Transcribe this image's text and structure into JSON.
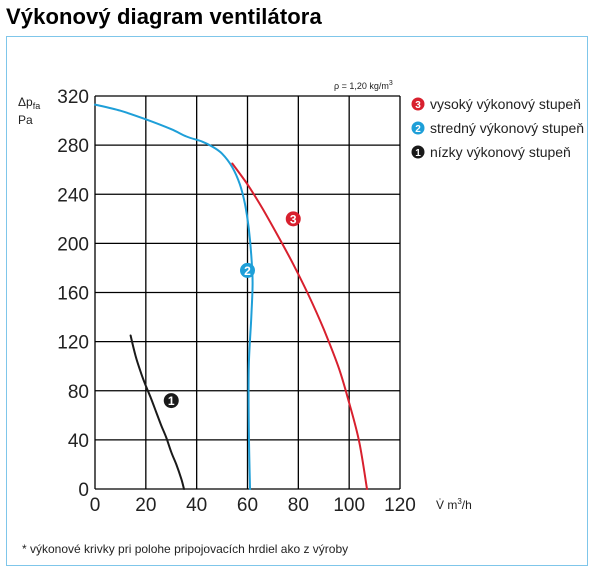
{
  "title": "Výkonový diagram ventilátora",
  "footnote": "* výkonové krivky pri polohe pripojovacích hrdiel ako z výroby",
  "colors": {
    "high": "#d8202e",
    "medium": "#1e9fd8",
    "low": "#1a1a1a",
    "frame": "#7fc6ea"
  },
  "chart_data": {
    "type": "line",
    "ylabel_main": "Δp",
    "ylabel_sub": "fa",
    "ylabel_unit": "Pa",
    "xlabel_main": "V̇ m",
    "xlabel_sup": "3",
    "xlabel_tail": "/h",
    "density_prefix": "ρ = 1,20 kg/m",
    "density_sup": "3",
    "xlim": [
      0,
      120
    ],
    "ylim": [
      0,
      320
    ],
    "xticks": [
      0,
      20,
      40,
      60,
      80,
      100,
      120
    ],
    "yticks": [
      0,
      40,
      80,
      120,
      160,
      200,
      240,
      280,
      320
    ],
    "grid": true,
    "legend_position": "right",
    "series": [
      {
        "name": "vysoký výkonový stupeň",
        "badge": "3",
        "color": "#d8202e",
        "x": [
          54,
          60,
          66,
          72,
          78,
          84,
          90,
          96,
          100,
          104,
          107
        ],
        "y": [
          265,
          248,
          228,
          206,
          183,
          158,
          130,
          98,
          70,
          38,
          0
        ]
      },
      {
        "name": "stredný výkonový stupeň",
        "badge": "2",
        "color": "#1e9fd8",
        "x": [
          0,
          10,
          20,
          30,
          36,
          42,
          46,
          50,
          54,
          57,
          59,
          60.5,
          61.5,
          62,
          61.5,
          60.5,
          60.5,
          61
        ],
        "y": [
          313,
          308,
          301,
          293,
          287,
          283,
          279,
          273,
          262,
          248,
          232,
          212,
          190,
          168,
          140,
          100,
          50,
          0
        ]
      },
      {
        "name": "nízky výkonový stupeň",
        "badge": "1",
        "color": "#1a1a1a",
        "x": [
          14,
          16,
          18,
          20,
          22,
          24,
          26,
          28,
          30,
          32,
          34,
          35
        ],
        "y": [
          125,
          108,
          95,
          84,
          74,
          63,
          52,
          42,
          30,
          20,
          8,
          0
        ]
      }
    ],
    "badge_positions": [
      {
        "badge": "3",
        "x": 78,
        "y": 220
      },
      {
        "badge": "2",
        "x": 60,
        "y": 178
      },
      {
        "badge": "1",
        "x": 30,
        "y": 72
      }
    ]
  }
}
